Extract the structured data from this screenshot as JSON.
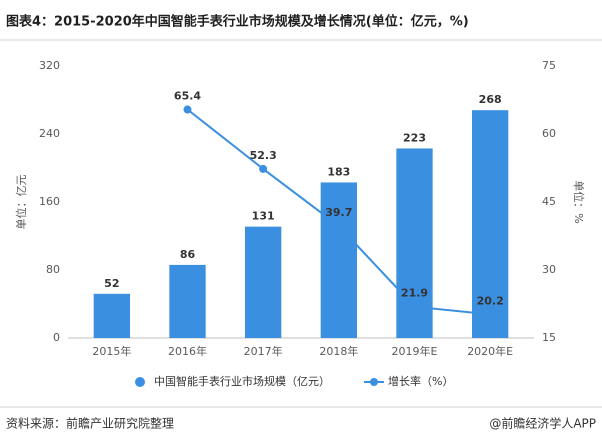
{
  "chart_data": {
    "type": "bar_line",
    "title": "图表4：2015-2020年中国智能手表行业市场规模及增长情况(单位：亿元，%)",
    "categories": [
      "2015年",
      "2016年",
      "2017年",
      "2018年",
      "2019年E",
      "2020年E"
    ],
    "series": [
      {
        "name": "中国智能手表行业市场规模（亿元）",
        "color": "#3b8fe0",
        "type": "bar",
        "values": [
          52,
          86,
          131,
          183,
          223,
          268
        ]
      },
      {
        "name": "增长率（%）",
        "color": "#3b8fe0",
        "type": "line",
        "axis": "y2",
        "values": [
          null,
          65.4,
          52.3,
          39.7,
          21.9,
          20.2
        ]
      }
    ],
    "ylabel": "单位：亿元",
    "y2label": "单位：%",
    "ylim": [
      0,
      320
    ],
    "yticks": [
      0,
      80,
      160,
      240,
      320
    ],
    "y2lim": [
      15,
      75
    ],
    "y2ticks": [
      15,
      30,
      45,
      60,
      75
    ],
    "legend": "bottom",
    "source": "资料来源：前瞻产业研究院整理",
    "footer": "@前瞻经济学人APP"
  }
}
